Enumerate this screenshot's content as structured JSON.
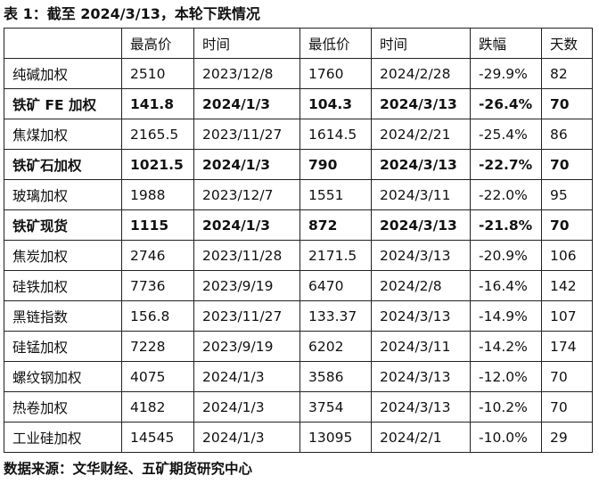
{
  "title": "表 1：截至 2024/3/13，本轮下跌情况",
  "columns": [
    "",
    "最高价",
    "时间",
    "最低价",
    "时间",
    "跌幅",
    "天数"
  ],
  "rows": [
    {
      "name": "纯碱加权",
      "high": "2510",
      "high_date": "2023/12/8",
      "low": "1760",
      "low_date": "2024/2/28",
      "drop": "-29.9%",
      "days": "82",
      "bold": false
    },
    {
      "name": "铁矿 FE 加权",
      "high": "141.8",
      "high_date": "2024/1/3",
      "low": "104.3",
      "low_date": "2024/3/13",
      "drop": "-26.4%",
      "days": "70",
      "bold": true
    },
    {
      "name": "焦煤加权",
      "high": "2165.5",
      "high_date": "2023/11/27",
      "low": "1614.5",
      "low_date": "2024/2/21",
      "drop": "-25.4%",
      "days": "86",
      "bold": false
    },
    {
      "name": "铁矿石加权",
      "high": "1021.5",
      "high_date": "2024/1/3",
      "low": "790",
      "low_date": "2024/3/13",
      "drop": "-22.7%",
      "days": "70",
      "bold": true
    },
    {
      "name": "玻璃加权",
      "high": "1988",
      "high_date": "2023/12/7",
      "low": "1551",
      "low_date": "2024/3/11",
      "drop": "-22.0%",
      "days": "95",
      "bold": false
    },
    {
      "name": "铁矿现货",
      "high": "1115",
      "high_date": "2024/1/3",
      "low": "872",
      "low_date": "2024/3/13",
      "drop": "-21.8%",
      "days": "70",
      "bold": true
    },
    {
      "name": "焦炭加权",
      "high": "2746",
      "high_date": "2023/11/28",
      "low": "2171.5",
      "low_date": "2024/3/13",
      "drop": "-20.9%",
      "days": "106",
      "bold": false
    },
    {
      "name": "硅铁加权",
      "high": "7736",
      "high_date": "2023/9/19",
      "low": "6470",
      "low_date": "2024/2/8",
      "drop": "-16.4%",
      "days": "142",
      "bold": false
    },
    {
      "name": "黑链指数",
      "high": "156.8",
      "high_date": "2023/11/27",
      "low": "133.37",
      "low_date": "2024/3/13",
      "drop": "-14.9%",
      "days": "107",
      "bold": false
    },
    {
      "name": "硅锰加权",
      "high": "7228",
      "high_date": "2023/9/19",
      "low": "6202",
      "low_date": "2024/3/11",
      "drop": "-14.2%",
      "days": "174",
      "bold": false
    },
    {
      "name": "螺纹钢加权",
      "high": "4075",
      "high_date": "2024/1/3",
      "low": "3586",
      "low_date": "2024/3/13",
      "drop": "-12.0%",
      "days": "70",
      "bold": false
    },
    {
      "name": "热卷加权",
      "high": "4182",
      "high_date": "2024/1/3",
      "low": "3754",
      "low_date": "2024/3/13",
      "drop": "-10.2%",
      "days": "70",
      "bold": false
    },
    {
      "name": "工业硅加权",
      "high": "14545",
      "high_date": "2024/1/3",
      "low": "13095",
      "low_date": "2024/2/1",
      "drop": "-10.0%",
      "days": "29",
      "bold": false
    }
  ],
  "source": "数据来源：文华财经、五矿期货研究中心"
}
